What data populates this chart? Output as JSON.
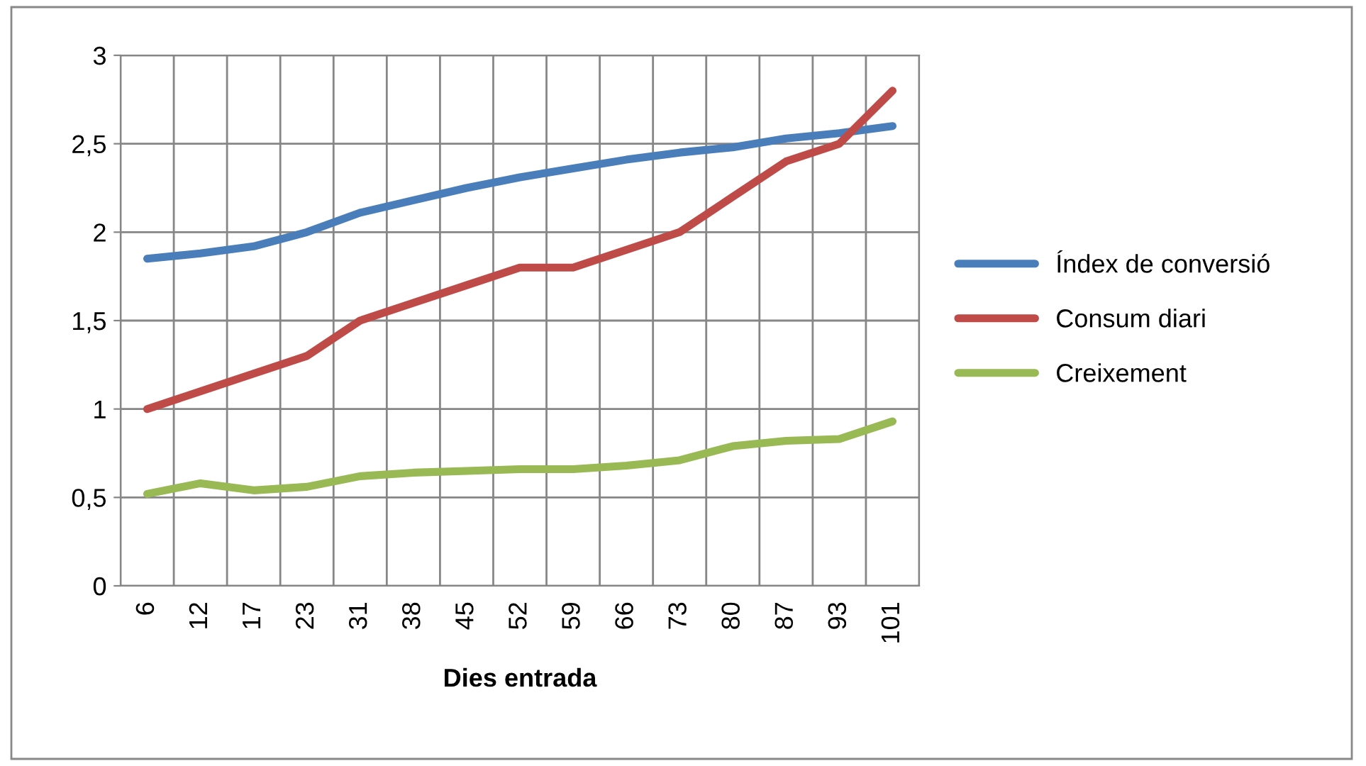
{
  "chart_data": {
    "type": "line",
    "xlabel": "Dies entrada",
    "categories": [
      "6",
      "12",
      "17",
      "23",
      "31",
      "38",
      "45",
      "52",
      "59",
      "66",
      "73",
      "80",
      "87",
      "93",
      "101"
    ],
    "series": [
      {
        "name": "Índex de conversió",
        "color": "#4a7ebb",
        "values": [
          1.85,
          1.88,
          1.92,
          2.0,
          2.11,
          2.18,
          2.25,
          2.31,
          2.36,
          2.41,
          2.45,
          2.48,
          2.53,
          2.56,
          2.6
        ]
      },
      {
        "name": "Consum diari",
        "color": "#be4b48",
        "values": [
          1.0,
          1.1,
          1.2,
          1.3,
          1.5,
          1.6,
          1.7,
          1.8,
          1.8,
          1.9,
          2.0,
          2.2,
          2.4,
          2.5,
          2.8
        ]
      },
      {
        "name": "Creixement",
        "color": "#98b954",
        "values": [
          0.52,
          0.58,
          0.54,
          0.56,
          0.62,
          0.64,
          0.65,
          0.66,
          0.66,
          0.68,
          0.71,
          0.79,
          0.82,
          0.83,
          0.93
        ]
      }
    ],
    "ylim": [
      0,
      3
    ],
    "yticks": [
      0,
      {
        "value": 0.5,
        "label": "0,5"
      },
      1,
      {
        "value": 1.5,
        "label": "1,5"
      },
      2,
      {
        "value": 2.5,
        "label": "2,5"
      },
      3
    ],
    "grid": true,
    "legend": "right",
    "marker": "none",
    "line_style": "solid"
  }
}
